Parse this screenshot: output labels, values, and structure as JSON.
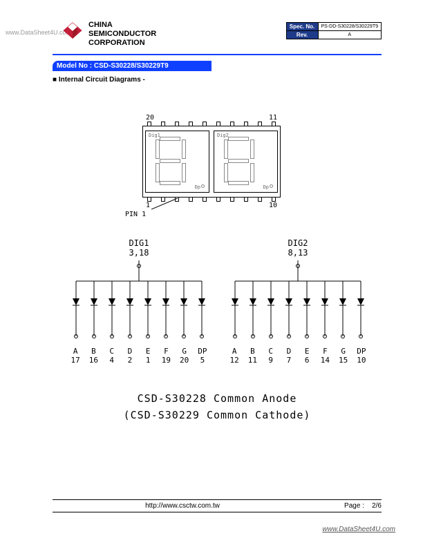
{
  "watermark_left": "www.DataSheet4U.com",
  "company": {
    "line1": "CHINA",
    "line2": "SEMICONDUCTOR",
    "line3": "CORPORATION"
  },
  "logo_color": "#c41e3a",
  "spec": {
    "spec_no_label": "Spec. No.",
    "spec_no": "PS-DD-S30228/S30229T9",
    "rev_label": "Rev.",
    "rev": "A"
  },
  "model_bar": "Model No : CSD-S30228/S30229T9",
  "section": "Internal Circuit Diagrams -",
  "package": {
    "top_left_pin": "20",
    "top_right_pin": "11",
    "bot_left_pin": "1",
    "bot_right_pin": "10",
    "dig1_label": "Dig1",
    "dig2_label": "Dig2",
    "dp_label": "Dp",
    "pin1_text": "PIN 1"
  },
  "circuits": {
    "dig1": {
      "label": "DIG1",
      "pins": "3,18",
      "segments": [
        "A",
        "B",
        "C",
        "D",
        "E",
        "F",
        "G",
        "DP"
      ],
      "seg_pins": [
        "17",
        "16",
        "4",
        "2",
        "1",
        "19",
        "20",
        "5"
      ]
    },
    "dig2": {
      "label": "DIG2",
      "pins": "8,13",
      "segments": [
        "A",
        "B",
        "C",
        "D",
        "E",
        "F",
        "G",
        "DP"
      ],
      "seg_pins": [
        "12",
        "11",
        "9",
        "7",
        "6",
        "14",
        "15",
        "10"
      ]
    },
    "colors": {
      "line": "#000000"
    }
  },
  "model_text": {
    "line1": "CSD-S30228   Common Anode",
    "line2": "(CSD-S30229 Common Cathode)"
  },
  "footer": {
    "url": "http://www.csctw.com.tw",
    "page_label": "Page :",
    "page": "2/6"
  },
  "watermark_br": "www.DataSheet4U.com"
}
